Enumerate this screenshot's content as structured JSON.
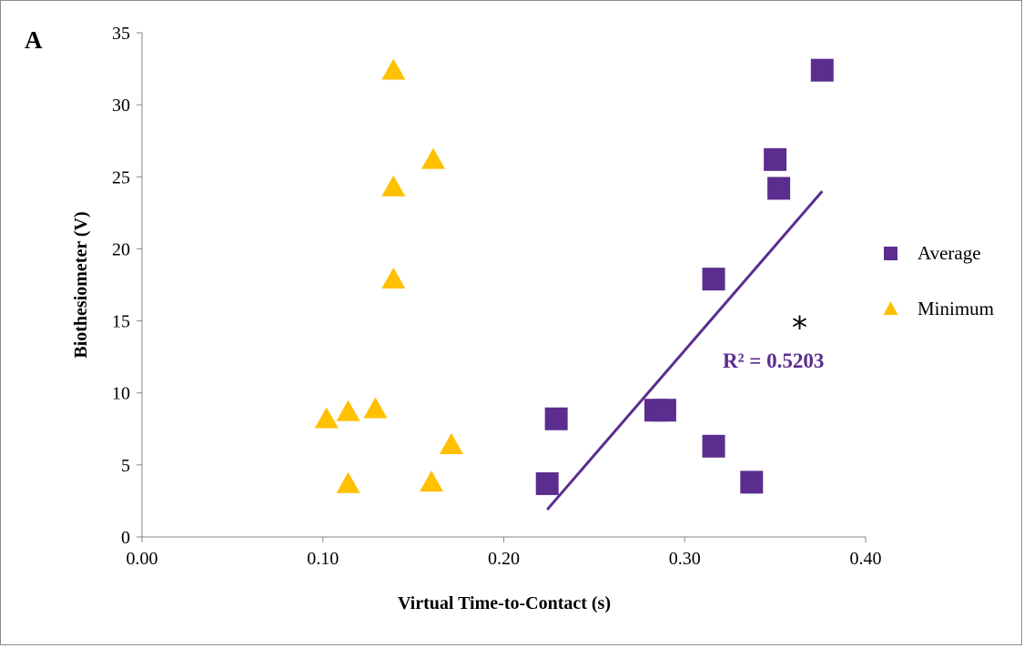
{
  "chart_data": {
    "type": "scatter",
    "panel_label": "A",
    "xlabel": "Virtual Time-to-Contact (s)",
    "ylabel": "Biothesiometer (V)",
    "xlim": [
      0,
      0.4
    ],
    "ylim": [
      0,
      35
    ],
    "x_ticks": [
      "0.00",
      "0.10",
      "0.20",
      "0.30",
      "0.40"
    ],
    "y_ticks": [
      "0",
      "5",
      "10",
      "15",
      "20",
      "25",
      "30",
      "35"
    ],
    "grid": false,
    "legend_position": "right",
    "series": [
      {
        "name": "Average",
        "marker": "square",
        "color": "#5b2d8e",
        "points": [
          {
            "x": 0.376,
            "y": 32.4
          },
          {
            "x": 0.35,
            "y": 26.2
          },
          {
            "x": 0.352,
            "y": 24.2
          },
          {
            "x": 0.316,
            "y": 17.9
          },
          {
            "x": 0.229,
            "y": 8.2
          },
          {
            "x": 0.284,
            "y": 8.8
          },
          {
            "x": 0.289,
            "y": 8.8
          },
          {
            "x": 0.316,
            "y": 6.3
          },
          {
            "x": 0.224,
            "y": 3.7
          },
          {
            "x": 0.337,
            "y": 3.8
          }
        ]
      },
      {
        "name": "Minimum",
        "marker": "triangle",
        "color": "#ffc000",
        "points": [
          {
            "x": 0.139,
            "y": 32.3
          },
          {
            "x": 0.161,
            "y": 26.1
          },
          {
            "x": 0.139,
            "y": 24.2
          },
          {
            "x": 0.139,
            "y": 17.8
          },
          {
            "x": 0.102,
            "y": 8.1
          },
          {
            "x": 0.114,
            "y": 8.6
          },
          {
            "x": 0.129,
            "y": 8.8
          },
          {
            "x": 0.171,
            "y": 6.3
          },
          {
            "x": 0.114,
            "y": 3.6
          },
          {
            "x": 0.16,
            "y": 3.7
          }
        ]
      }
    ],
    "trendline": {
      "series": "Average",
      "color": "#5b2d8e",
      "from": {
        "x": 0.224,
        "y": 1.9
      },
      "to": {
        "x": 0.376,
        "y": 24.0
      },
      "label": "R² = 0.5203"
    },
    "annotation": {
      "text": "*",
      "x": 0.3635,
      "y": 15.2
    }
  }
}
